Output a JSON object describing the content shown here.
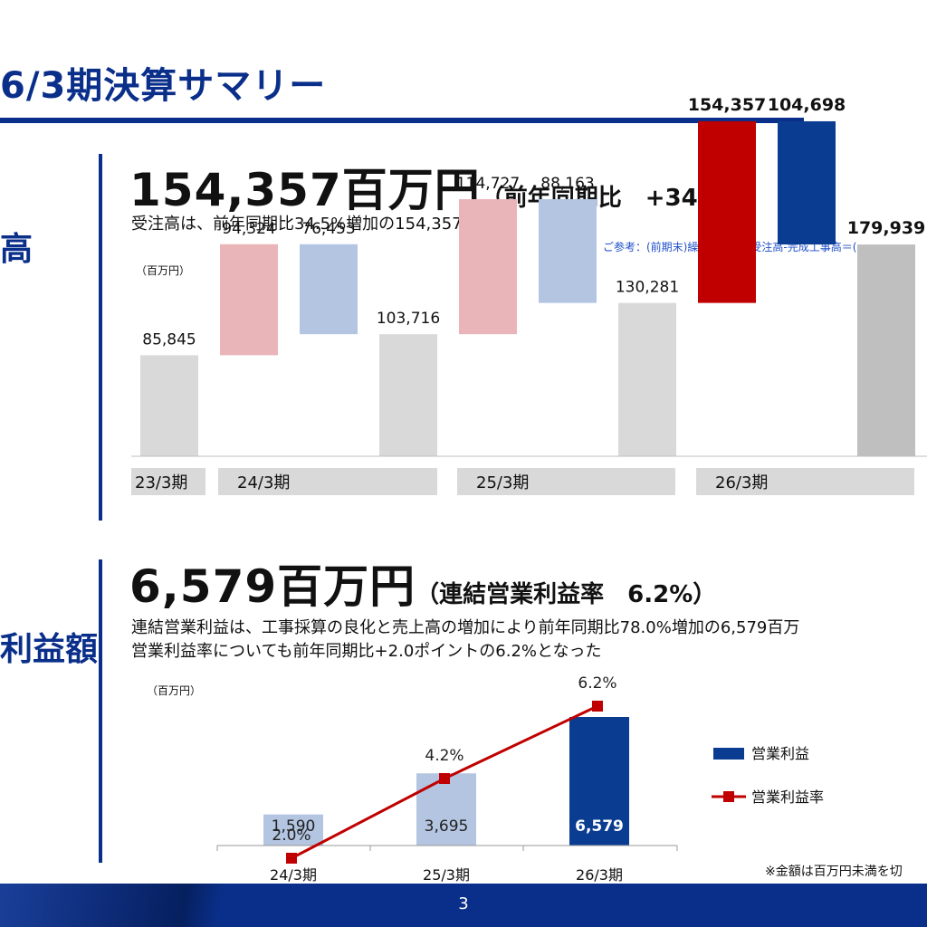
{
  "header": {
    "title": "6/3期決算サマリー"
  },
  "orders": {
    "side_label": "高",
    "headline_value": "154,357百万円",
    "headline_note": "（前年同期比　+34.5%）",
    "subtitle": "受注高は、前年同期比34.5%増加の154,357百万円",
    "reference_note": "ご参考：(前期末)繰越工事高+受注高-完成工事高＝(",
    "unit": "（百万円）"
  },
  "profit": {
    "side_label": "利益額",
    "headline_value": "6,579百万円",
    "headline_note": "（連結営業利益率　6.2%）",
    "subtitle_line1": "連結営業利益は、工事採算の良化と売上高の増加により前年同期比78.0%増加の6,579百万",
    "subtitle_line2": "営業利益率についても前年同期比+2.0ポイントの6.2%となった",
    "unit": "（百万円）"
  },
  "footnote": "※金額は百万円未満を切",
  "footer": {
    "page_number": "3"
  },
  "chart_data": [
    {
      "type": "bar",
      "subtype": "waterfall",
      "ylim": [
        0,
        200000
      ],
      "colors": {
        "carryover": "#d9d9d9",
        "orders_prev": "#eab5b8",
        "completed_prev": "#b3c5e1",
        "orders_current": "#c00000",
        "completed_current": "#0a3d91",
        "carryover_current": "#bfbfbf"
      },
      "bars": [
        {
          "kind": "carryover",
          "value": 85845,
          "label": "85,845"
        },
        {
          "kind": "orders_prev",
          "value": 94324,
          "label": "94,324"
        },
        {
          "kind": "completed_prev",
          "value": 76453,
          "label": "76,453"
        },
        {
          "kind": "carryover",
          "value": 103716,
          "label": "103,716"
        },
        {
          "kind": "orders_prev",
          "value": 114727,
          "label": "114,727"
        },
        {
          "kind": "completed_prev",
          "value": 88163,
          "label": "88,163"
        },
        {
          "kind": "carryover",
          "value": 130281,
          "label": "130,281"
        },
        {
          "kind": "orders_current",
          "value": 154357,
          "label": "154,357"
        },
        {
          "kind": "completed_current",
          "value": 104698,
          "label": "104,698"
        },
        {
          "kind": "carryover_current",
          "value": 179939,
          "label": "179,939"
        }
      ],
      "periods": [
        "23/3期",
        "24/3期",
        "25/3期",
        "26/3期"
      ]
    },
    {
      "type": "bar",
      "categories": [
        "24/3期",
        "25/3期",
        "26/3期"
      ],
      "series": [
        {
          "name": "営業利益",
          "values": [
            1590,
            3695,
            6579
          ],
          "labels": [
            "1,590",
            "3,695",
            "6,579"
          ],
          "colors": [
            "#b3c5e1",
            "#b3c5e1",
            "#0a3d91"
          ]
        },
        {
          "name": "営業利益率",
          "type": "line",
          "values": [
            2.0,
            4.2,
            6.2
          ],
          "labels": [
            "2.0%",
            "4.2%",
            "6.2%"
          ],
          "color": "#c00000"
        }
      ],
      "legend": "right"
    }
  ]
}
